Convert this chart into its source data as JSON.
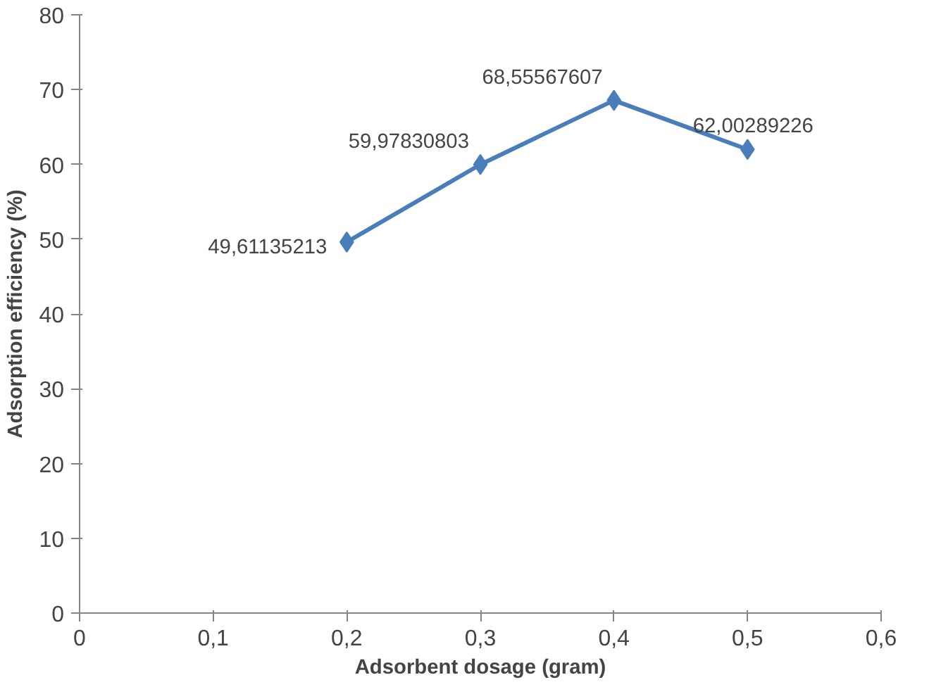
{
  "chart_data": {
    "type": "line",
    "xlabel": "Adsorbent dosage (gram)",
    "ylabel": "Adsorption efficiency (%)",
    "x": [
      0.2,
      0.3,
      0.4,
      0.5
    ],
    "series": [
      {
        "color": "#4a7ebb",
        "values": [
          49.61135213,
          59.97830803,
          68.55567607,
          62.00289226
        ],
        "value_labels": [
          "49,61135213",
          "59,97830803",
          "68,55567607",
          "62,00289226"
        ]
      }
    ],
    "xlim": [
      0,
      0.6
    ],
    "ylim": [
      0,
      80
    ],
    "xticks": [
      0,
      {
        "value": 0.1,
        "label": "0,1"
      },
      {
        "value": 0.2,
        "label": "0,2"
      },
      {
        "value": 0.3,
        "label": "0,3"
      },
      {
        "value": 0.4,
        "label": "0,4"
      },
      {
        "value": 0.5,
        "label": "0,5"
      },
      {
        "value": 0.6,
        "label": "0,6"
      }
    ],
    "yticks": [
      0,
      10,
      20,
      30,
      40,
      50,
      60,
      70,
      80
    ],
    "grid": false,
    "marker": "diamond",
    "line_style": "solid"
  }
}
